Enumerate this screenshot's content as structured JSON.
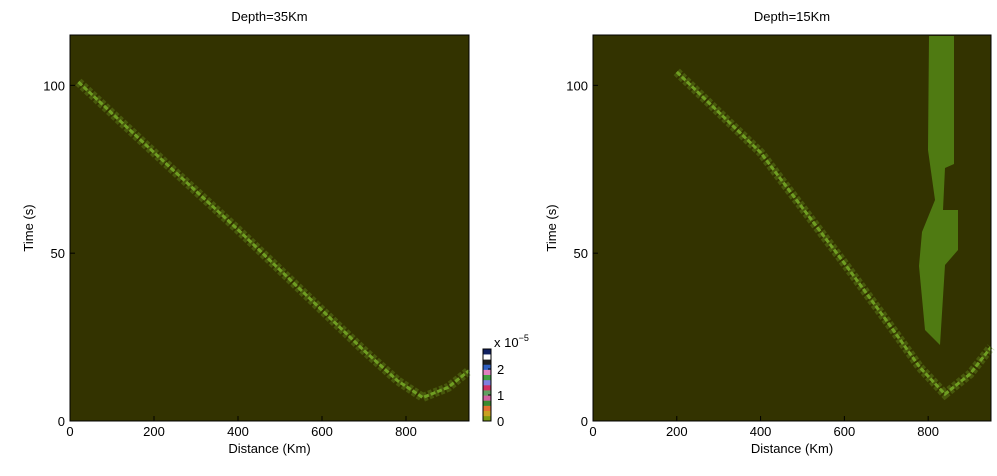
{
  "chart_data": [
    {
      "type": "heatmap-trace",
      "title": "Depth=35Km",
      "xlabel": "Distance (Km)",
      "ylabel": "Time (s)",
      "xlim": [
        0,
        950
      ],
      "xticks": [
        0,
        200,
        400,
        600,
        800
      ],
      "ylim": [
        0,
        115
      ],
      "yticks": [
        0,
        50,
        100
      ],
      "background": "#333300",
      "series": [
        {
          "color": "#6f9e22",
          "x": [
            20,
            200,
            400,
            600,
            700,
            780,
            840,
            900,
            950
          ],
          "values": [
            101,
            80,
            57,
            33,
            21,
            12,
            7,
            10,
            15
          ]
        }
      ],
      "colorbar": {
        "label": "x 10",
        "exponent": "−5",
        "clim": [
          0,
          2.77
        ],
        "ticks": [
          0,
          1,
          2
        ],
        "colormap": [
          "#7a9a10",
          "#c8a020",
          "#e07030",
          "#3a8a30",
          "#d060a0",
          "#60a060",
          "#d03060",
          "#8080e0",
          "#40a040",
          "#e080c0",
          "#3060c0",
          "#202020",
          "#ffffff",
          "#102060"
        ]
      }
    },
    {
      "type": "heatmap-trace",
      "title": "Depth=15Km",
      "xlabel": "Distance (Km)",
      "ylabel": "Time (s)",
      "xlim": [
        0,
        950
      ],
      "xticks": [
        0,
        200,
        400,
        600,
        800
      ],
      "ylim": [
        0,
        115
      ],
      "yticks": [
        0,
        50,
        100
      ],
      "background": "#333300",
      "series": [
        {
          "color": "#6f9e22",
          "x": [
            200,
            400,
            600,
            700,
            780,
            840,
            900,
            950
          ],
          "values": [
            104,
            80,
            47,
            30,
            16,
            8,
            14,
            22
          ]
        }
      ]
    }
  ]
}
